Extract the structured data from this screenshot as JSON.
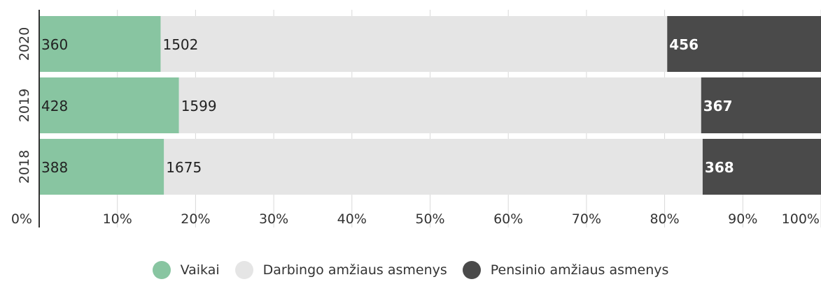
{
  "chart_data": {
    "type": "bar",
    "orientation": "horizontal",
    "stacked": "percent",
    "categories": [
      "2020",
      "2019",
      "2018"
    ],
    "series": [
      {
        "name": "Vaikai",
        "values": [
          360,
          428,
          388
        ],
        "color": "#88c5a1",
        "label_color": "#222222"
      },
      {
        "name": "Darbingo amžiaus asmenys",
        "values": [
          1502,
          1599,
          1675
        ],
        "color": "#e5e5e5",
        "label_color": "#222222"
      },
      {
        "name": "Pensinio amžiaus asmenys",
        "values": [
          456,
          367,
          368
        ],
        "color": "#4a4a4a",
        "label_color": "#ffffff"
      }
    ],
    "x_ticks": [
      "0%",
      "10%",
      "20%",
      "30%",
      "40%",
      "50%",
      "60%",
      "70%",
      "80%",
      "90%",
      "100%"
    ],
    "xlim": [
      0,
      100
    ],
    "grid": true,
    "legend_position": "bottom"
  }
}
